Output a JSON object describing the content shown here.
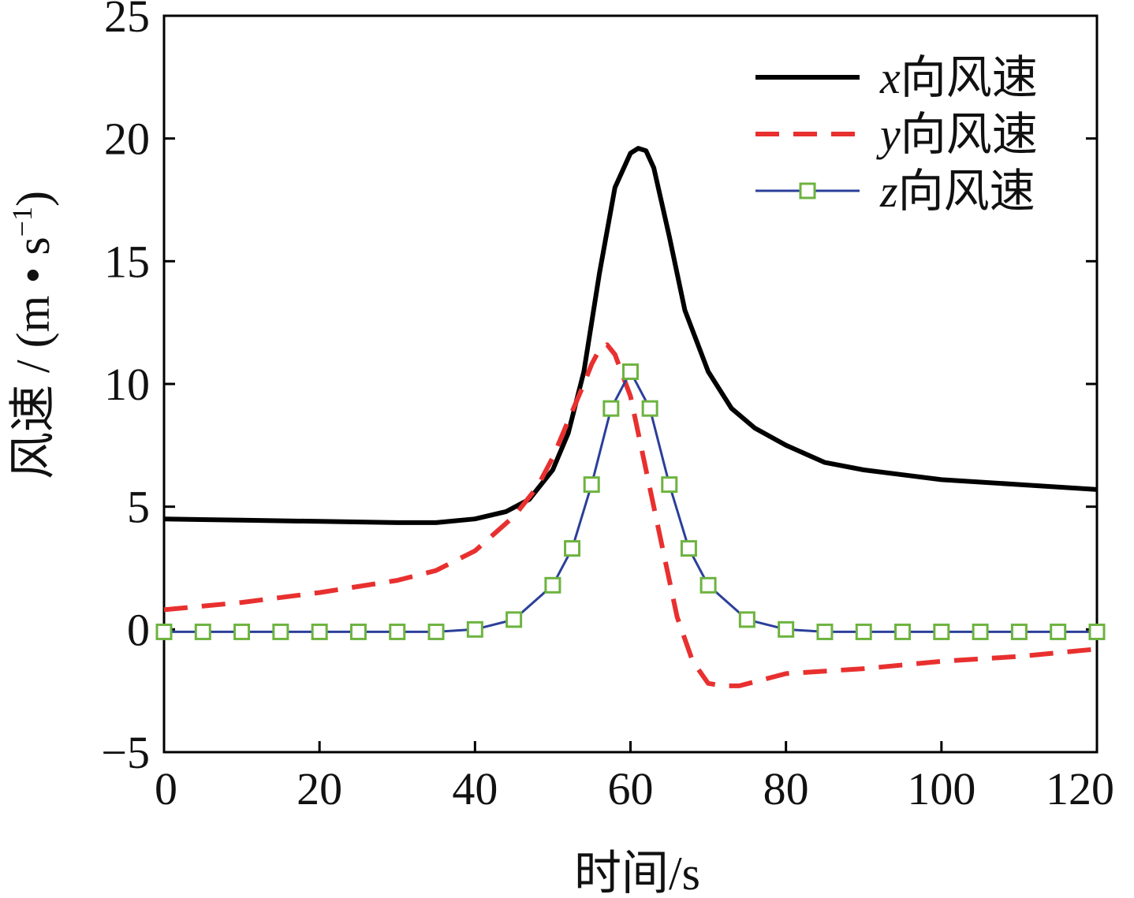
{
  "chart_data": {
    "type": "line",
    "xlabel": "时间/s",
    "ylabel": "风速 / (m • s",
    "ylabel_sup": "−1",
    "ylabel_close": ")",
    "xlim": [
      0,
      120
    ],
    "ylim": [
      -5,
      25
    ],
    "x_ticks": [
      "0",
      "20",
      "40",
      "60",
      "80",
      "100",
      "120"
    ],
    "y_ticks": [
      "−5",
      "0",
      "5",
      "10",
      "15",
      "20",
      "25"
    ],
    "x_tick_values": [
      0,
      20,
      40,
      60,
      80,
      100,
      120
    ],
    "y_tick_values": [
      -5,
      0,
      5,
      10,
      15,
      20,
      25
    ],
    "grid": false,
    "legend_position": "top-right",
    "series": [
      {
        "name": "x向风速",
        "legend_var": "x",
        "legend_suffix": "向风速",
        "color": "#000000",
        "style": "solid",
        "marker": "none",
        "x": [
          0,
          10,
          20,
          30,
          35,
          40,
          44,
          47,
          50,
          52,
          54,
          56,
          58,
          60,
          61,
          62,
          63,
          65,
          67,
          70,
          73,
          76,
          80,
          85,
          90,
          100,
          110,
          120
        ],
        "y": [
          4.5,
          4.45,
          4.4,
          4.35,
          4.35,
          4.5,
          4.8,
          5.3,
          6.5,
          8.0,
          10.5,
          14.5,
          18.0,
          19.4,
          19.6,
          19.5,
          18.8,
          16.0,
          13.0,
          10.5,
          9.0,
          8.2,
          7.5,
          6.8,
          6.5,
          6.1,
          5.9,
          5.7
        ]
      },
      {
        "name": "y向风速",
        "legend_var": "y",
        "legend_suffix": "向风速",
        "color": "#e8302f",
        "style": "dashed",
        "marker": "none",
        "x": [
          0,
          10,
          20,
          30,
          35,
          40,
          45,
          48,
          50,
          52,
          54,
          55,
          56,
          57,
          58,
          60,
          62,
          64,
          66,
          68,
          70,
          72,
          74,
          80,
          90,
          100,
          110,
          120
        ],
        "y": [
          0.8,
          1.1,
          1.5,
          2.0,
          2.4,
          3.2,
          4.6,
          5.8,
          7.0,
          8.5,
          10.0,
          10.8,
          11.4,
          11.6,
          11.2,
          9.5,
          6.5,
          3.5,
          0.5,
          -1.3,
          -2.2,
          -2.3,
          -2.3,
          -1.8,
          -1.6,
          -1.3,
          -1.1,
          -0.8
        ]
      },
      {
        "name": "z向风速",
        "legend_var": "z",
        "legend_suffix": "向风速",
        "color": "#2b3f9a",
        "marker_color": "#6db33f",
        "style": "solid",
        "marker": "square",
        "x": [
          0,
          5,
          10,
          15,
          20,
          25,
          30,
          35,
          40,
          45,
          50,
          52.5,
          55,
          57.5,
          60,
          62.5,
          65,
          67.5,
          70,
          75,
          80,
          85,
          90,
          95,
          100,
          105,
          110,
          115,
          120
        ],
        "y": [
          -0.1,
          -0.1,
          -0.1,
          -0.1,
          -0.1,
          -0.1,
          -0.1,
          -0.1,
          0.0,
          0.4,
          1.8,
          3.3,
          5.9,
          9.0,
          10.5,
          9.0,
          5.9,
          3.3,
          1.8,
          0.4,
          0.0,
          -0.1,
          -0.1,
          -0.1,
          -0.1,
          -0.1,
          -0.1,
          -0.1,
          -0.1
        ]
      }
    ]
  }
}
